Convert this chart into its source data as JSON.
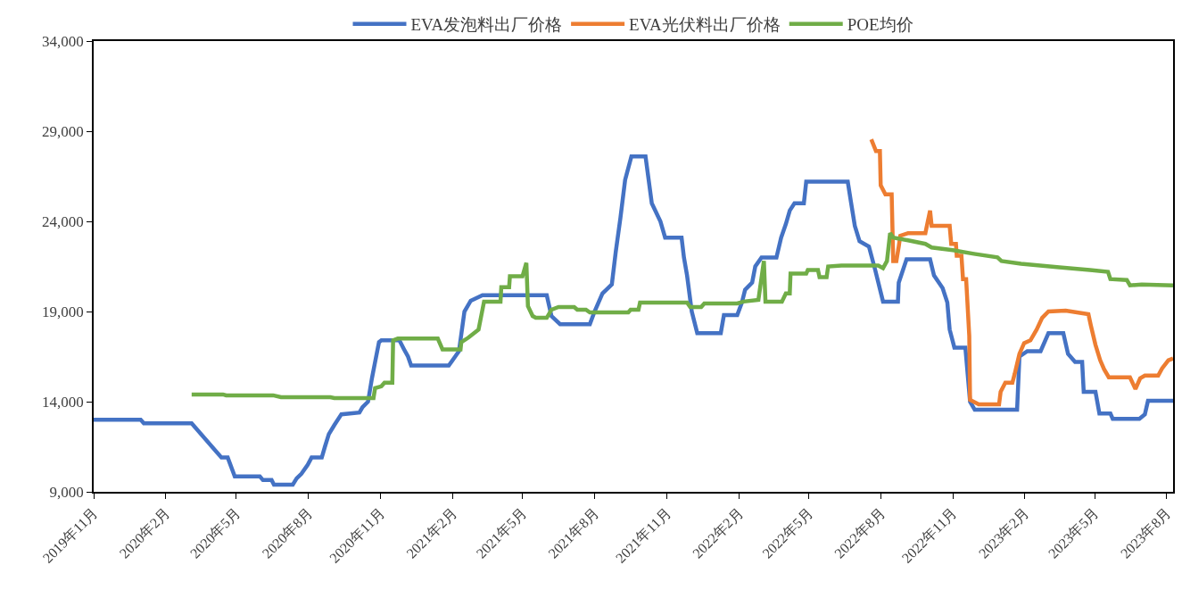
{
  "chart_data": {
    "type": "line",
    "legend": "top",
    "grid": false,
    "xlim": [
      "2019-11-01",
      "2023-08-09"
    ],
    "xticks": [
      {
        "value": "2019-11-01",
        "label": "2019年11月"
      },
      {
        "value": "2020-02-01",
        "label": "2020年2月"
      },
      {
        "value": "2020-05-01",
        "label": "2020年5月"
      },
      {
        "value": "2020-08-01",
        "label": "2020年8月"
      },
      {
        "value": "2020-11-01",
        "label": "2020年11月"
      },
      {
        "value": "2021-02-01",
        "label": "2021年2月"
      },
      {
        "value": "2021-05-01",
        "label": "2021年5月"
      },
      {
        "value": "2021-08-01",
        "label": "2021年8月"
      },
      {
        "value": "2021-11-01",
        "label": "2021年11月"
      },
      {
        "value": "2022-02-01",
        "label": "2022年2月"
      },
      {
        "value": "2022-05-01",
        "label": "2022年5月"
      },
      {
        "value": "2022-08-01",
        "label": "2022年8月"
      },
      {
        "value": "2022-11-01",
        "label": "2022年11月"
      },
      {
        "value": "2023-02-01",
        "label": "2023年2月"
      },
      {
        "value": "2023-05-01",
        "label": "2023年5月"
      },
      {
        "value": "2023-08-01",
        "label": "2023年8月"
      }
    ],
    "ylim": [
      9000,
      34000
    ],
    "yticks": [
      {
        "value": 9000,
        "label": "9,000"
      },
      {
        "value": 14000,
        "label": "14,000"
      },
      {
        "value": 19000,
        "label": "19,000"
      },
      {
        "value": 24000,
        "label": "24,000"
      },
      {
        "value": 29000,
        "label": "29,000"
      },
      {
        "value": 34000,
        "label": "34,000"
      }
    ],
    "series": [
      {
        "name": "EVA发泡料出厂价格",
        "color": "#4472c4",
        "line_style": "solid",
        "x": [
          "2019-11-01",
          "2019-12-31",
          "2020-01-04",
          "2020-03-05",
          "2020-04-12",
          "2020-04-20",
          "2020-04-29",
          "2020-05-31",
          "2020-06-04",
          "2020-06-15",
          "2020-06-18",
          "2020-07-12",
          "2020-07-17",
          "2020-07-23",
          "2020-07-31",
          "2020-08-05",
          "2020-08-18",
          "2020-08-22",
          "2020-08-27",
          "2020-09-03",
          "2020-09-12",
          "2020-10-05",
          "2020-10-09",
          "2020-10-16",
          "2020-10-21",
          "2020-10-25",
          "2020-10-30",
          "2020-11-02",
          "2020-11-25",
          "2020-12-01",
          "2020-12-06",
          "2020-12-10",
          "2021-01-27",
          "2021-02-09",
          "2021-02-16",
          "2021-02-24",
          "2021-03-11",
          "2021-06-01",
          "2021-06-07",
          "2021-06-18",
          "2021-07-26",
          "2021-08-01",
          "2021-08-11",
          "2021-08-23",
          "2021-08-28",
          "2021-09-03",
          "2021-09-09",
          "2021-09-17",
          "2021-10-05",
          "2021-10-13",
          "2021-10-24",
          "2021-10-30",
          "2021-11-20",
          "2021-11-23",
          "2021-11-27",
          "2021-12-03",
          "2021-12-10",
          "2022-01-09",
          "2022-01-13",
          "2022-01-30",
          "2022-02-05",
          "2022-02-09",
          "2022-02-18",
          "2022-02-22",
          "2022-03-02",
          "2022-03-21",
          "2022-03-27",
          "2022-04-02",
          "2022-04-07",
          "2022-04-13",
          "2022-04-25",
          "2022-04-28",
          "2022-06-20",
          "2022-06-24",
          "2022-06-29",
          "2022-07-05",
          "2022-07-17",
          "2022-07-25",
          "2022-08-04",
          "2022-08-23",
          "2022-08-24",
          "2022-09-03",
          "2022-10-03",
          "2022-10-08",
          "2022-10-19",
          "2022-10-25",
          "2022-10-28",
          "2022-11-03",
          "2022-11-17",
          "2022-11-23",
          "2022-11-29",
          "2023-01-22",
          "2023-01-25",
          "2023-02-04",
          "2023-02-21",
          "2023-03-03",
          "2023-03-22",
          "2023-03-28",
          "2023-04-06",
          "2023-04-15",
          "2023-04-17",
          "2023-05-02",
          "2023-05-07",
          "2023-05-21",
          "2023-05-24",
          "2023-06-27",
          "2023-07-04",
          "2023-07-08",
          "2023-08-09"
        ],
        "values": [
          13000,
          13000,
          12800,
          12800,
          10900,
          10900,
          9850,
          9850,
          9650,
          9650,
          9400,
          9400,
          9750,
          10000,
          10500,
          10900,
          10900,
          11500,
          12200,
          12700,
          13300,
          13400,
          13700,
          14000,
          15300,
          16200,
          17300,
          17400,
          17400,
          16900,
          16500,
          16000,
          16000,
          16800,
          19000,
          19600,
          19900,
          19900,
          18750,
          18300,
          18300,
          19000,
          20000,
          20500,
          22300,
          24200,
          26300,
          27600,
          27600,
          25000,
          24000,
          23100,
          23100,
          22000,
          21000,
          19000,
          17800,
          17800,
          18800,
          18800,
          19500,
          20200,
          20600,
          21500,
          22000,
          22000,
          23100,
          23850,
          24600,
          25000,
          25000,
          26200,
          26200,
          25100,
          23750,
          22900,
          22600,
          21300,
          19550,
          19550,
          20600,
          21900,
          21900,
          21000,
          20300,
          19500,
          18000,
          17000,
          17000,
          14000,
          13550,
          13550,
          16500,
          16800,
          16800,
          17800,
          17800,
          16650,
          16200,
          16200,
          14550,
          14550,
          13350,
          13350,
          13050,
          13050,
          13300,
          14050,
          14050
        ]
      },
      {
        "name": "EVA光伏料出厂价格",
        "color": "#ed7d31",
        "line_style": "solid",
        "x": [
          "2022-07-20",
          "2022-07-26",
          "2022-07-31",
          "2022-08-01",
          "2022-08-07",
          "2022-08-15",
          "2022-08-17",
          "2022-08-21",
          "2022-08-24",
          "2022-08-26",
          "2022-09-05",
          "2022-09-27",
          "2022-10-03",
          "2022-10-05",
          "2022-10-28",
          "2022-10-30",
          "2022-11-05",
          "2022-11-06",
          "2022-11-12",
          "2022-11-14",
          "2022-11-18",
          "2022-11-22",
          "2022-11-23",
          "2022-12-04",
          "2022-12-30",
          "2023-01-01",
          "2023-01-07",
          "2023-01-16",
          "2023-01-19",
          "2023-01-25",
          "2023-01-31",
          "2023-02-08",
          "2023-02-16",
          "2023-02-23",
          "2023-03-03",
          "2023-03-25",
          "2023-04-23",
          "2023-04-26",
          "2023-05-02",
          "2023-05-08",
          "2023-05-13",
          "2023-05-19",
          "2023-06-15",
          "2023-06-22",
          "2023-06-28",
          "2023-07-04",
          "2023-07-21",
          "2023-07-26",
          "2023-08-03",
          "2023-08-09"
        ],
        "values": [
          28550,
          27900,
          27900,
          26000,
          25500,
          25500,
          21800,
          21800,
          22600,
          23200,
          23350,
          23350,
          24600,
          23750,
          23750,
          22750,
          22750,
          22100,
          22100,
          20800,
          20800,
          17650,
          14100,
          13850,
          13850,
          14550,
          15050,
          15050,
          15550,
          16650,
          17250,
          17400,
          18000,
          18650,
          19000,
          19050,
          18850,
          18250,
          17150,
          16300,
          15800,
          15350,
          15350,
          14700,
          15300,
          15450,
          15450,
          15850,
          16300,
          16400
        ]
      },
      {
        "name": "POE均价",
        "color": "#70ad47",
        "line_style": "solid",
        "x": [
          "2020-03-05",
          "2020-04-14",
          "2020-04-18",
          "2020-06-17",
          "2020-06-27",
          "2020-08-29",
          "2020-09-03",
          "2020-10-23",
          "2020-10-25",
          "2020-11-02",
          "2020-11-06",
          "2020-11-16",
          "2020-11-17",
          "2020-11-23",
          "2021-01-13",
          "2021-01-19",
          "2021-02-11",
          "2021-02-12",
          "2021-02-21",
          "2021-03-06",
          "2021-03-13",
          "2021-04-03",
          "2021-04-04",
          "2021-04-14",
          "2021-04-15",
          "2021-05-01",
          "2021-05-06",
          "2021-05-08",
          "2021-05-14",
          "2021-05-18",
          "2021-06-01",
          "2021-06-07",
          "2021-06-16",
          "2021-07-06",
          "2021-07-10",
          "2021-07-21",
          "2021-07-26",
          "2021-09-13",
          "2021-09-16",
          "2021-09-26",
          "2021-09-28",
          "2021-11-27",
          "2021-12-01",
          "2021-12-15",
          "2021-12-19",
          "2022-01-30",
          "2022-02-07",
          "2022-02-26",
          "2022-03-05",
          "2022-03-07",
          "2022-03-28",
          "2022-04-02",
          "2022-04-07",
          "2022-04-08",
          "2022-04-28",
          "2022-04-30",
          "2022-05-13",
          "2022-05-15",
          "2022-05-24",
          "2022-05-26",
          "2022-06-12",
          "2022-07-29",
          "2022-08-04",
          "2022-08-09",
          "2022-08-13",
          "2022-08-17",
          "2022-09-05",
          "2022-09-27",
          "2022-10-05",
          "2022-11-01",
          "2022-11-28",
          "2022-12-28",
          "2023-01-02",
          "2023-01-27",
          "2023-03-17",
          "2023-04-25",
          "2023-05-18",
          "2023-05-21",
          "2023-06-11",
          "2023-06-15",
          "2023-06-30",
          "2023-08-09"
        ],
        "values": [
          14400,
          14400,
          14350,
          14350,
          14250,
          14250,
          14200,
          14200,
          14750,
          14850,
          15050,
          15050,
          17400,
          17500,
          17500,
          16900,
          16900,
          17300,
          17550,
          18000,
          19550,
          19550,
          20350,
          20350,
          20950,
          20950,
          21700,
          19300,
          18750,
          18650,
          18650,
          19100,
          19250,
          19250,
          19100,
          19100,
          18950,
          18950,
          19100,
          19100,
          19500,
          19500,
          19250,
          19250,
          19450,
          19450,
          19550,
          19650,
          21800,
          19550,
          19550,
          20000,
          20000,
          21100,
          21100,
          21300,
          21300,
          20900,
          20900,
          21500,
          21550,
          21550,
          21400,
          21800,
          23350,
          23100,
          22950,
          22750,
          22550,
          22400,
          22200,
          22000,
          21800,
          21650,
          21450,
          21300,
          21200,
          20800,
          20750,
          20450,
          20500,
          20450
        ]
      }
    ]
  }
}
